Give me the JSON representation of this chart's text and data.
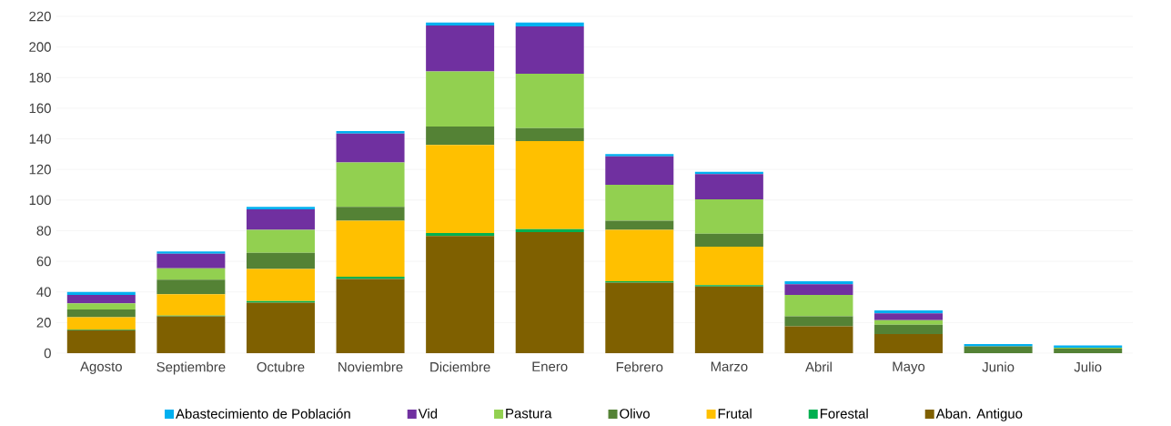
{
  "chart_data": {
    "type": "bar",
    "stacked": true,
    "categories": [
      "Agosto",
      "Septiembre",
      "Octubre",
      "Noviembre",
      "Diciembre",
      "Enero",
      "Febrero",
      "Marzo",
      "Abril",
      "Mayo",
      "Junio",
      "Julio"
    ],
    "series": [
      {
        "name": "Aban. Antiguo",
        "color": "#7f6000",
        "values": [
          15,
          24,
          33,
          48.5,
          76.5,
          79,
          46,
          43.5,
          17.5,
          12.5,
          0,
          0
        ]
      },
      {
        "name": "Forestal",
        "color": "#00b050",
        "values": [
          0.5,
          0.5,
          1,
          1.5,
          2,
          2,
          1,
          1,
          0,
          0,
          0,
          0
        ]
      },
      {
        "name": "Frutal",
        "color": "#ffc000",
        "values": [
          8,
          14,
          21,
          36.5,
          57.5,
          57.5,
          33.5,
          25,
          0,
          0,
          0,
          0
        ]
      },
      {
        "name": "Olivo",
        "color": "#548235",
        "values": [
          5,
          9.5,
          10.5,
          9,
          12,
          8.5,
          6,
          8.5,
          6.5,
          6,
          4.5,
          3
        ]
      },
      {
        "name": "Pastura",
        "color": "#92d050",
        "values": [
          4,
          7.5,
          15,
          29,
          36,
          35.5,
          23.5,
          22.5,
          14,
          3,
          null,
          0.5
        ]
      },
      {
        "name": "Vid",
        "color": "#7030a0",
        "values": [
          5.5,
          9.5,
          13.5,
          19,
          30,
          31,
          18.5,
          16.5,
          7,
          4.5,
          0,
          0
        ]
      },
      {
        "name": "Abastecimiento de Población",
        "color": "#00b0f0",
        "values": [
          2,
          1.5,
          1.5,
          1.5,
          2,
          2.5,
          1.5,
          1.5,
          2,
          2,
          1.5,
          1.5
        ]
      }
    ],
    "ylim": [
      0,
      220
    ],
    "yticks": [
      0,
      20,
      40,
      60,
      80,
      100,
      120,
      140,
      160,
      180,
      200,
      220
    ],
    "grid": "y",
    "legend": "bottom"
  }
}
